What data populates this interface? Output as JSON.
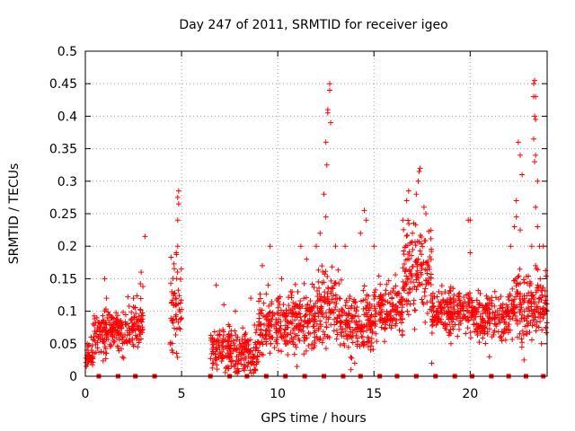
{
  "chart_data": {
    "type": "scatter",
    "title": "Day 247 of 2011, SRMTID for receiver igeo",
    "xlabel": "GPS time / hours",
    "ylabel": "SRMTID / TECUs",
    "xlim": [
      0,
      24
    ],
    "ylim": [
      0,
      0.5
    ],
    "x_ticks": [
      0,
      5,
      10,
      15,
      20
    ],
    "x_tick_labels": [
      "0",
      "5",
      "10",
      "15",
      "20"
    ],
    "y_ticks": [
      0,
      0.05,
      0.1,
      0.15,
      0.2,
      0.25,
      0.3,
      0.35,
      0.4,
      0.45,
      0.5
    ],
    "y_tick_labels": [
      "0",
      "0.05",
      "0.1",
      "0.15",
      "0.2",
      "0.25",
      "0.3",
      "0.35",
      "0.4",
      "0.45",
      "0.5"
    ],
    "grid": true,
    "marker": "+",
    "color": "#ff0000",
    "bands": [
      {
        "x_start": 0.0,
        "x_end": 0.4,
        "y_center": 0.03,
        "y_spread": 0.02
      },
      {
        "x_start": 0.4,
        "x_end": 1.2,
        "y_center": 0.065,
        "y_spread": 0.035
      },
      {
        "x_start": 1.2,
        "x_end": 2.2,
        "y_center": 0.07,
        "y_spread": 0.035
      },
      {
        "x_start": 2.2,
        "x_end": 3.0,
        "y_center": 0.085,
        "y_spread": 0.045
      },
      {
        "x_start": 4.4,
        "x_end": 5.0,
        "y_center": 0.1,
        "y_spread": 0.09
      },
      {
        "x_start": 6.5,
        "x_end": 7.5,
        "y_center": 0.04,
        "y_spread": 0.04
      },
      {
        "x_start": 7.5,
        "x_end": 9.0,
        "y_center": 0.035,
        "y_spread": 0.035
      },
      {
        "x_start": 9.0,
        "x_end": 10.5,
        "y_center": 0.08,
        "y_spread": 0.045
      },
      {
        "x_start": 10.5,
        "x_end": 12.0,
        "y_center": 0.085,
        "y_spread": 0.05
      },
      {
        "x_start": 12.0,
        "x_end": 13.2,
        "y_center": 0.11,
        "y_spread": 0.06
      },
      {
        "x_start": 13.2,
        "x_end": 15.0,
        "y_center": 0.085,
        "y_spread": 0.05
      },
      {
        "x_start": 15.0,
        "x_end": 16.5,
        "y_center": 0.1,
        "y_spread": 0.045
      },
      {
        "x_start": 16.5,
        "x_end": 18.0,
        "y_center": 0.16,
        "y_spread": 0.07
      },
      {
        "x_start": 18.0,
        "x_end": 20.0,
        "y_center": 0.1,
        "y_spread": 0.035
      },
      {
        "x_start": 20.0,
        "x_end": 22.0,
        "y_center": 0.09,
        "y_spread": 0.04
      },
      {
        "x_start": 22.0,
        "x_end": 24.0,
        "y_center": 0.11,
        "y_spread": 0.05
      }
    ],
    "points": [
      [
        0.1,
        0.05
      ],
      [
        0.3,
        0.06
      ],
      [
        0.6,
        0.09
      ],
      [
        1.0,
        0.15
      ],
      [
        1.1,
        0.12
      ],
      [
        2.5,
        0.12
      ],
      [
        2.9,
        0.16
      ],
      [
        3.1,
        0.215
      ],
      [
        4.5,
        0.04
      ],
      [
        4.7,
        0.12
      ],
      [
        4.75,
        0.15
      ],
      [
        4.8,
        0.2
      ],
      [
        4.8,
        0.24
      ],
      [
        4.85,
        0.265
      ],
      [
        4.85,
        0.285
      ],
      [
        4.8,
        0.275
      ],
      [
        6.8,
        0.14
      ],
      [
        7.2,
        0.11
      ],
      [
        7.8,
        0.1
      ],
      [
        8.6,
        0.12
      ],
      [
        9.2,
        0.17
      ],
      [
        9.5,
        0.14
      ],
      [
        9.6,
        0.2
      ],
      [
        10.2,
        0.15
      ],
      [
        11.2,
        0.2
      ],
      [
        11.5,
        0.18
      ],
      [
        12.0,
        0.2
      ],
      [
        12.2,
        0.22
      ],
      [
        12.4,
        0.28
      ],
      [
        12.5,
        0.36
      ],
      [
        12.55,
        0.325
      ],
      [
        12.6,
        0.41
      ],
      [
        12.6,
        0.405
      ],
      [
        12.7,
        0.44
      ],
      [
        12.7,
        0.45
      ],
      [
        12.75,
        0.39
      ],
      [
        12.5,
        0.245
      ],
      [
        13.0,
        0.2
      ],
      [
        13.5,
        0.2
      ],
      [
        14.3,
        0.22
      ],
      [
        14.5,
        0.255
      ],
      [
        14.6,
        0.24
      ],
      [
        15.0,
        0.2
      ],
      [
        16.5,
        0.24
      ],
      [
        16.7,
        0.27
      ],
      [
        16.8,
        0.285
      ],
      [
        17.0,
        0.22
      ],
      [
        17.2,
        0.28
      ],
      [
        17.3,
        0.3
      ],
      [
        17.35,
        0.315
      ],
      [
        17.4,
        0.32
      ],
      [
        17.6,
        0.26
      ],
      [
        17.7,
        0.25
      ],
      [
        19.9,
        0.24
      ],
      [
        20.0,
        0.24
      ],
      [
        20.0,
        0.19
      ],
      [
        22.1,
        0.2
      ],
      [
        22.3,
        0.23
      ],
      [
        22.4,
        0.27
      ],
      [
        22.5,
        0.36
      ],
      [
        22.6,
        0.34
      ],
      [
        22.7,
        0.31
      ],
      [
        22.6,
        0.225
      ],
      [
        22.4,
        0.245
      ],
      [
        23.2,
        0.2
      ],
      [
        23.3,
        0.45
      ],
      [
        23.35,
        0.455
      ],
      [
        23.3,
        0.43
      ],
      [
        23.4,
        0.43
      ],
      [
        23.35,
        0.4
      ],
      [
        23.4,
        0.395
      ],
      [
        23.3,
        0.365
      ],
      [
        23.4,
        0.34
      ],
      [
        23.35,
        0.33
      ],
      [
        23.5,
        0.3
      ],
      [
        23.4,
        0.26
      ],
      [
        23.5,
        0.23
      ],
      [
        23.6,
        0.2
      ],
      [
        23.4,
        0.17
      ],
      [
        23.8,
        0.2
      ],
      [
        23.7,
        0.05
      ],
      [
        22.8,
        0.025
      ],
      [
        18.0,
        0.02
      ],
      [
        19.0,
        0.05
      ],
      [
        21.0,
        0.03
      ],
      [
        14.0,
        0.02
      ],
      [
        13.8,
        0.01
      ],
      [
        11.0,
        0.015
      ]
    ],
    "zero_markers_x": [
      0.7,
      1.7,
      2.6,
      3.6,
      6.5,
      7.5,
      8.4,
      9.4,
      10.4,
      11.4,
      12.4,
      13.4,
      14.3,
      15.3,
      16.2,
      17.2,
      18.2,
      19.2,
      20.1,
      21.1,
      22.0,
      22.9,
      23.8
    ]
  }
}
